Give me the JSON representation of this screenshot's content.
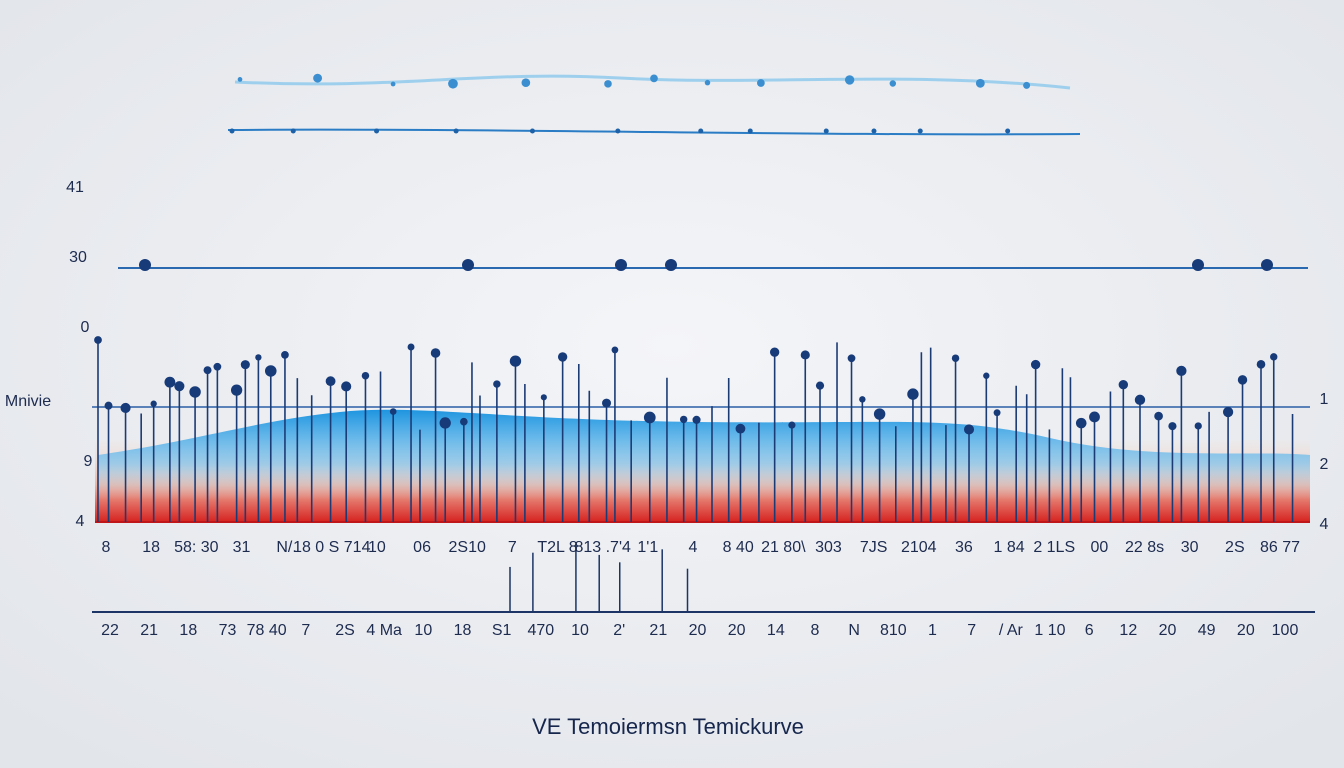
{
  "title": "VE Temoiermsn Temickurve",
  "y_label": "Mnivie",
  "left_labels": [
    "41",
    "30",
    "0",
    "9",
    "4"
  ],
  "right_labels": [
    "1",
    "2",
    "4"
  ],
  "row1_labels": [
    "8",
    "18",
    "58: 30",
    "31",
    "N/.",
    "18 0 S 714",
    "10",
    "06",
    "2S10",
    "7",
    "T2L 8",
    "813 .7'4",
    "1'1",
    "4",
    "8 40",
    "21 80\\",
    "303",
    "7JS",
    "2104",
    "36",
    "1 84",
    "2 1LS",
    "00",
    "22 8s",
    "30",
    "2S",
    "86 77"
  ],
  "row2_labels": [
    "22",
    "21",
    "18",
    "73",
    "78 40",
    "7",
    "2S",
    "4 Ma",
    "10",
    "18",
    "S1",
    "470",
    "10",
    "2'",
    "21",
    "20",
    "20",
    "14",
    "8",
    "N",
    "810",
    "1",
    "7",
    "/ Ar",
    "1 10",
    "6",
    "12",
    "20",
    "49",
    "20",
    "100"
  ]
}
